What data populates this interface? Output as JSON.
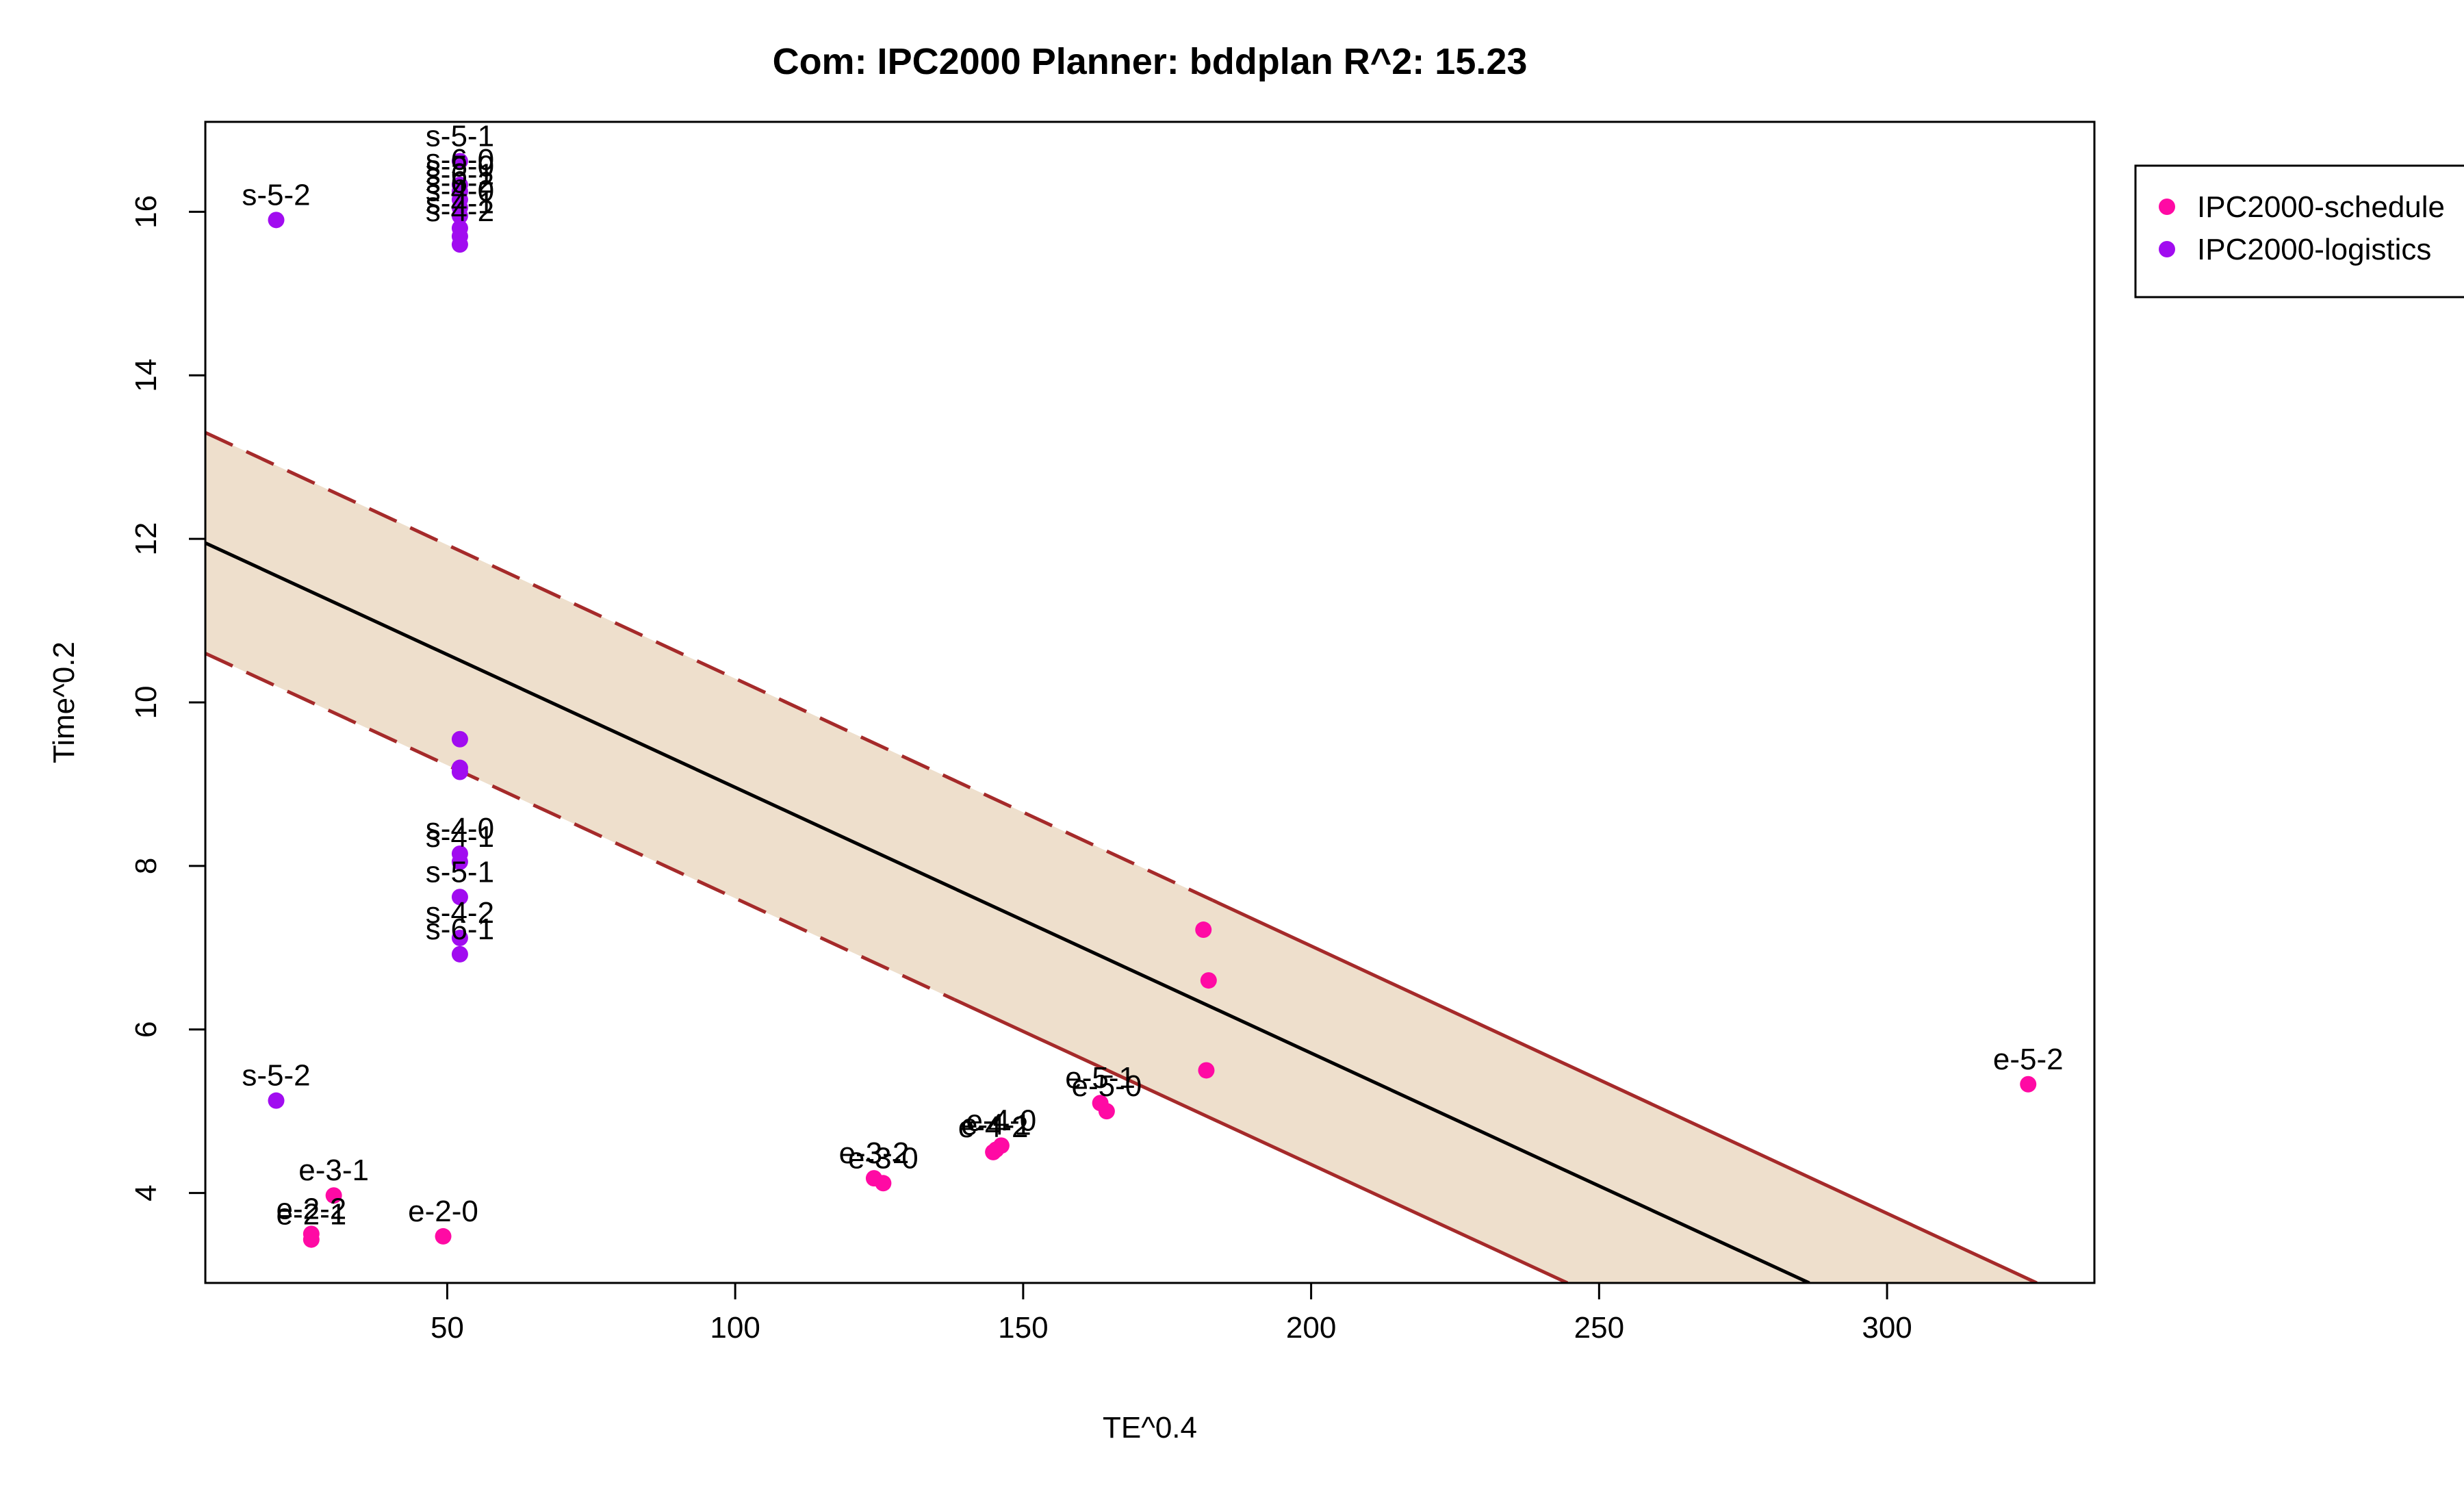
{
  "chart_data": {
    "type": "scatter",
    "title": "Com: IPC2000 Planner: bddplan R^2: 15.23",
    "xlabel": "TE^0.4",
    "ylabel": "Time^0.2",
    "xlim": [
      8,
      336
    ],
    "ylim": [
      2.9,
      17.1
    ],
    "x_ticks": [
      50,
      100,
      150,
      200,
      250,
      300
    ],
    "x_tick_labels": [
      "50",
      "100",
      "150",
      "200",
      "250",
      "300"
    ],
    "y_ticks": [
      4,
      6,
      8,
      10,
      12,
      14,
      16
    ],
    "y_tick_labels": [
      "4",
      "6",
      "8",
      "10",
      "12",
      "14",
      "16"
    ],
    "legend": {
      "placement": "top-right-outside",
      "entries": [
        {
          "label": "IPC2000-schedule",
          "color": "#FF0AA4"
        },
        {
          "label": "IPC2000-logistics",
          "color": "#A10CF0"
        }
      ]
    },
    "regression": {
      "line": {
        "x": [
          8,
          286.5
        ],
        "y": [
          11.95,
          2.9
        ],
        "color": "#000000"
      },
      "upper": {
        "x": [
          8,
          326
        ],
        "y": [
          13.3,
          2.9
        ],
        "color": "#A52A2A"
      },
      "lower": {
        "x": [
          8,
          244.5
        ],
        "y": [
          10.6,
          2.9
        ],
        "color": "#A52A2A"
      },
      "band_color": "#EEDFCC"
    },
    "series": [
      {
        "name": "IPC2000-schedule",
        "color": "#FF0AA4",
        "points": [
          {
            "x": 324.5,
            "y": 5.33,
            "label": "e-5-2"
          },
          {
            "x": 181.3,
            "y": 7.22,
            "label": ""
          },
          {
            "x": 182.2,
            "y": 6.6,
            "label": ""
          },
          {
            "x": 181.8,
            "y": 5.5,
            "label": ""
          },
          {
            "x": 163.4,
            "y": 5.1,
            "label": "e-5-1"
          },
          {
            "x": 164.5,
            "y": 5.0,
            "label": "e-5-0"
          },
          {
            "x": 146.2,
            "y": 4.58,
            "label": "e-4-0"
          },
          {
            "x": 145.3,
            "y": 4.53,
            "label": "e-4-1"
          },
          {
            "x": 144.8,
            "y": 4.5,
            "label": "e-4-2"
          },
          {
            "x": 124.1,
            "y": 4.18,
            "label": "e-3-2"
          },
          {
            "x": 125.7,
            "y": 4.12,
            "label": "e-3-0"
          },
          {
            "x": 30.3,
            "y": 3.97,
            "label": "e-3-1"
          },
          {
            "x": 26.4,
            "y": 3.5,
            "label": "e-2-2"
          },
          {
            "x": 26.4,
            "y": 3.43,
            "label": "e-2-1"
          },
          {
            "x": 49.3,
            "y": 3.47,
            "label": "e-2-0"
          }
        ]
      },
      {
        "name": "IPC2000-logistics",
        "color": "#A10CF0",
        "points": [
          {
            "x": 20.3,
            "y": 15.9,
            "label": "s-5-2"
          },
          {
            "x": 52.2,
            "y": 16.62,
            "label": "s-5-1"
          },
          {
            "x": 52.2,
            "y": 16.33,
            "label": "s-6-0"
          },
          {
            "x": 52.2,
            "y": 16.25,
            "label": "s-5-0"
          },
          {
            "x": 52.2,
            "y": 16.15,
            "label": "s-6-1"
          },
          {
            "x": 52.2,
            "y": 16.05,
            "label": "s-6-2"
          },
          {
            "x": 52.2,
            "y": 15.95,
            "label": "s-4-0"
          },
          {
            "x": 52.2,
            "y": 15.8,
            "label": "s-4-1"
          },
          {
            "x": 52.2,
            "y": 15.7,
            "label": "s-4-2"
          },
          {
            "x": 52.2,
            "y": 15.6,
            "label": ""
          },
          {
            "x": 52.2,
            "y": 9.55,
            "label": ""
          },
          {
            "x": 52.2,
            "y": 9.2,
            "label": ""
          },
          {
            "x": 52.2,
            "y": 9.15,
            "label": ""
          },
          {
            "x": 52.2,
            "y": 8.15,
            "label": "s-4-0"
          },
          {
            "x": 52.2,
            "y": 8.05,
            "label": "s-4-1"
          },
          {
            "x": 52.2,
            "y": 7.62,
            "label": "s-5-1"
          },
          {
            "x": 52.2,
            "y": 7.12,
            "label": "s-4-2"
          },
          {
            "x": 52.2,
            "y": 6.92,
            "label": "s-6-1"
          },
          {
            "x": 20.3,
            "y": 5.13,
            "label": "s-5-2"
          }
        ]
      }
    ]
  }
}
